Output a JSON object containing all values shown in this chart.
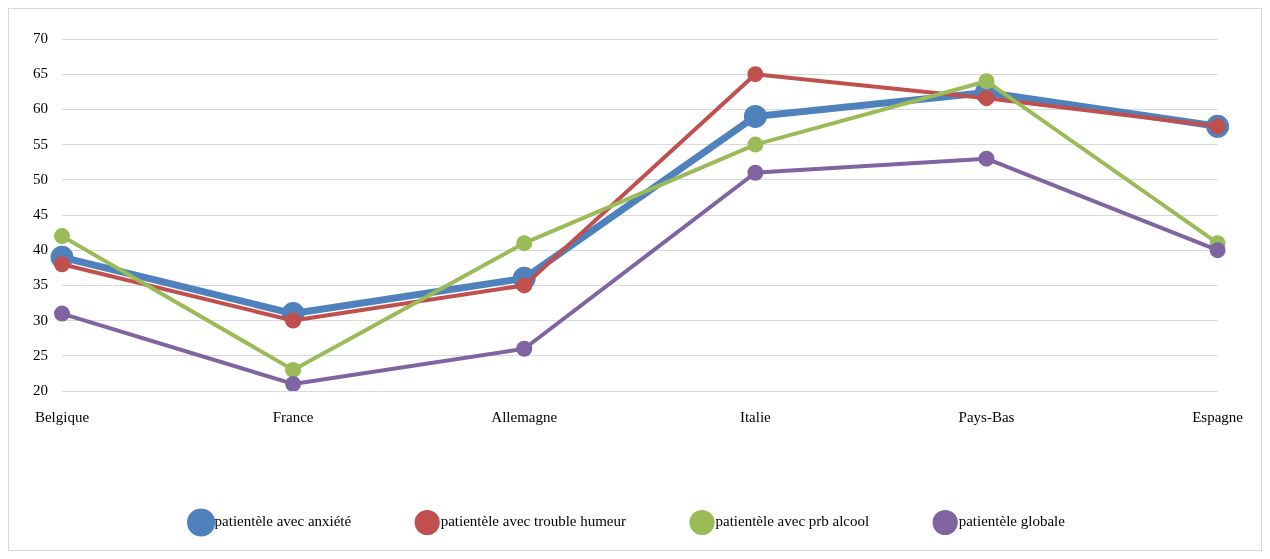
{
  "chart_data": {
    "type": "line",
    "categories": [
      "Belgique",
      "France",
      "Allemagne",
      "Italie",
      "Pays-Bas",
      "Espagne"
    ],
    "series": [
      {
        "name": "patientèle avec anxiété",
        "color": "#4f81bd",
        "values": [
          39,
          31,
          36,
          59,
          62.4,
          57.6
        ]
      },
      {
        "name": "patientèle avec trouble humeur",
        "color": "#c0504d",
        "values": [
          38,
          30,
          35,
          65,
          61.6,
          57.6
        ]
      },
      {
        "name": "patientèle avec prb alcool",
        "color": "#9bbb59",
        "values": [
          42,
          23,
          41,
          55,
          64,
          41
        ]
      },
      {
        "name": "patientèle globale",
        "color": "#8064a2",
        "values": [
          31,
          21,
          26,
          51,
          53,
          40
        ]
      }
    ],
    "ylim": [
      20,
      70
    ],
    "yticks": [
      20,
      25,
      30,
      35,
      40,
      45,
      50,
      55,
      60,
      65,
      70
    ],
    "grid": "y",
    "legend": "bottom",
    "marker": "circle",
    "line_style": "solid"
  }
}
